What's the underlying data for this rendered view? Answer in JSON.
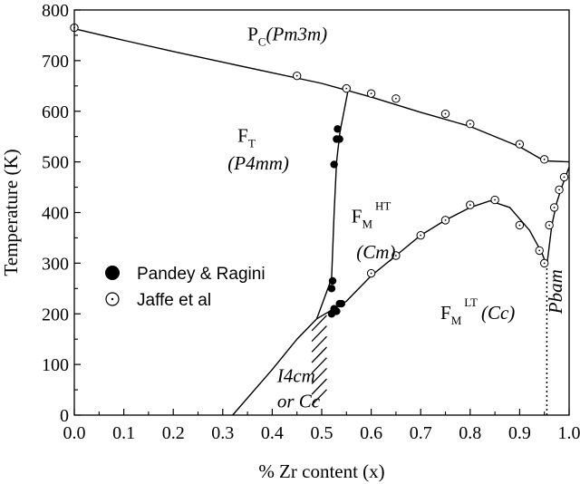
{
  "chart_data": {
    "type": "scatter",
    "xlabel": "% Zr content (x)",
    "ylabel": "Temperature (K)",
    "xlim": [
      0.0,
      1.0
    ],
    "ylim": [
      0,
      800
    ],
    "x_ticks": [
      "0.0",
      "0.1",
      "0.2",
      "0.3",
      "0.4",
      "0.5",
      "0.6",
      "0.7",
      "0.8",
      "0.9",
      "1.0"
    ],
    "y_ticks": [
      "0",
      "100",
      "200",
      "300",
      "400",
      "500",
      "600",
      "700",
      "800"
    ],
    "grid": false,
    "legend": {
      "placement": "middle-left",
      "entries": [
        {
          "name": "Pandey & Ragini",
          "marker": "filled-circle"
        },
        {
          "name": "Jaffe et al",
          "marker": "open-circle-dot"
        }
      ]
    },
    "series": [
      {
        "name": "Pandey & Ragini",
        "marker": "filled-circle",
        "x": [
          0.52,
          0.522,
          0.525,
          0.53,
          0.532,
          0.536,
          0.52,
          0.525,
          0.53,
          0.536,
          0.54
        ],
        "y": [
          250,
          265,
          495,
          545,
          565,
          545,
          200,
          210,
          205,
          220,
          220
        ]
      },
      {
        "name": "Jaffe et al",
        "marker": "open-circle-dot",
        "x": [
          0.0,
          0.45,
          0.55,
          0.6,
          0.65,
          0.75,
          0.8,
          0.9,
          0.95,
          0.6,
          0.65,
          0.7,
          0.75,
          0.8,
          0.85,
          0.9,
          0.94,
          0.95,
          0.96,
          0.97,
          0.98,
          0.99
        ],
        "y": [
          765,
          670,
          645,
          635,
          625,
          595,
          575,
          535,
          505,
          280,
          315,
          355,
          385,
          415,
          425,
          375,
          325,
          300,
          375,
          410,
          445,
          470
        ]
      }
    ],
    "boundaries": [
      {
        "x": [
          0.0,
          0.1,
          0.2,
          0.3,
          0.4,
          0.5,
          0.6,
          0.7,
          0.8,
          0.9,
          0.95,
          1.0
        ],
        "y": [
          763,
          740,
          718,
          697,
          676,
          655,
          628,
          598,
          570,
          530,
          502,
          500
        ]
      },
      {
        "x": [
          0.49,
          0.505,
          0.52,
          0.525,
          0.53,
          0.537,
          0.545,
          0.555
        ],
        "y": [
          190,
          230,
          270,
          400,
          500,
          560,
          600,
          650
        ]
      },
      {
        "x": [
          0.32,
          0.4,
          0.45,
          0.49
        ],
        "y": [
          0,
          90,
          150,
          190
        ]
      },
      {
        "x": [
          0.49,
          0.55,
          0.6,
          0.65,
          0.7,
          0.75,
          0.8,
          0.84,
          0.88,
          0.92,
          0.945,
          0.955
        ],
        "y": [
          190,
          225,
          275,
          315,
          355,
          385,
          410,
          423,
          410,
          365,
          320,
          295
        ]
      },
      {
        "x": [
          0.955,
          0.965,
          0.975,
          0.985,
          1.0
        ],
        "y": [
          295,
          375,
          420,
          450,
          490
        ]
      }
    ],
    "dotted_boundary": {
      "x": [
        0.955,
        0.955
      ],
      "y": [
        0,
        295
      ]
    },
    "hatched_region": {
      "x_from": 0.48,
      "x_to": 0.51,
      "y_from": 20,
      "y_to": 175
    },
    "phase_labels": [
      {
        "main": "P",
        "sub": "C",
        "rest": "(Pm3m)",
        "x": 0.35,
        "y": 740
      },
      {
        "main": "F",
        "sub": "T",
        "x": 0.33,
        "y": 540
      },
      {
        "main": "(P4mm)",
        "x": 0.31,
        "y": 485
      },
      {
        "main": "F",
        "sub": "M",
        "sup": "HT",
        "x": 0.56,
        "y": 380
      },
      {
        "main": "(Cm)",
        "x": 0.57,
        "y": 310
      },
      {
        "main": "F",
        "sub": "M",
        "sup": "LT",
        "rest": "(Cc)",
        "x": 0.74,
        "y": 190
      },
      {
        "main": "I4cm",
        "x": 0.41,
        "y": 65
      },
      {
        "main": "or Cc",
        "x": 0.41,
        "y": 15
      },
      {
        "main": "Pbam",
        "x": 0.985,
        "y": 200,
        "rotate": -90
      }
    ]
  }
}
